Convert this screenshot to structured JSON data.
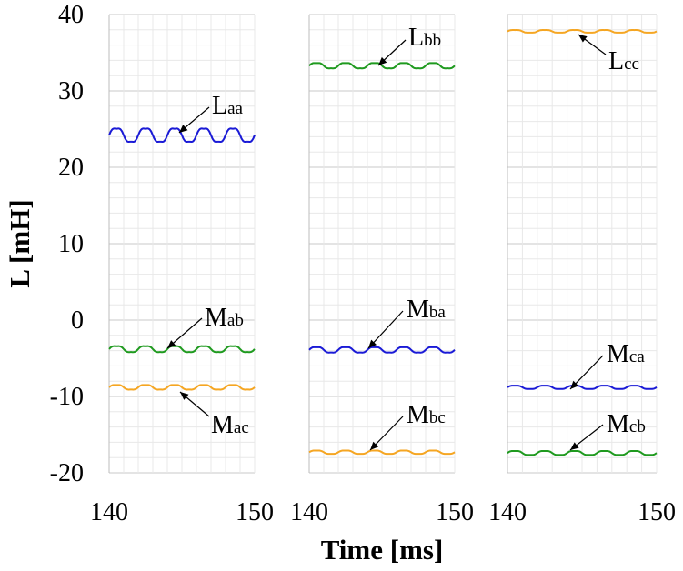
{
  "chart_data": {
    "type": "line",
    "xlabel": "Time [ms]",
    "ylabel": "L [mH]",
    "ylim": [
      -20,
      40
    ],
    "xlim": [
      140,
      150
    ],
    "y_ticks": [
      "40",
      "30",
      "20",
      "10",
      "0",
      "-10",
      "-20"
    ],
    "grid": true,
    "colors": {
      "blue": "#1a1ad6",
      "green": "#1f9a1f",
      "orange": "#f5a623"
    },
    "panels": [
      {
        "x_tick_labels": [
          "140",
          "150"
        ],
        "series": [
          {
            "name": "Laa",
            "main": "L",
            "sub": "aa",
            "color": "#1a1ad6",
            "mean": 24.2,
            "amplitude": 1.0,
            "cycles": 5
          },
          {
            "name": "Mab",
            "main": "M",
            "sub": "ab",
            "color": "#1f9a1f",
            "mean": -3.8,
            "amplitude": 0.45,
            "cycles": 5
          },
          {
            "name": "Mac",
            "main": "M",
            "sub": "ac",
            "color": "#f5a623",
            "mean": -8.8,
            "amplitude": 0.35,
            "cycles": 5
          }
        ]
      },
      {
        "x_tick_labels": [
          "140",
          "150"
        ],
        "series": [
          {
            "name": "Lbb",
            "main": "L",
            "sub": "bb",
            "color": "#1f9a1f",
            "mean": 33.3,
            "amplitude": 0.4,
            "cycles": 5
          },
          {
            "name": "Mba",
            "main": "M",
            "sub": "ba",
            "color": "#1a1ad6",
            "mean": -3.9,
            "amplitude": 0.4,
            "cycles": 5
          },
          {
            "name": "Mbc",
            "main": "M",
            "sub": "bc",
            "color": "#f5a623",
            "mean": -17.3,
            "amplitude": 0.25,
            "cycles": 5
          }
        ]
      },
      {
        "x_tick_labels": [
          "140",
          "150"
        ],
        "series": [
          {
            "name": "Lcc",
            "main": "L",
            "sub": "cc",
            "color": "#f5a623",
            "mean": 37.8,
            "amplitude": 0.2,
            "cycles": 5
          },
          {
            "name": "Mca",
            "main": "M",
            "sub": "ca",
            "color": "#1a1ad6",
            "mean": -8.8,
            "amplitude": 0.25,
            "cycles": 5
          },
          {
            "name": "Mcb",
            "main": "M",
            "sub": "cb",
            "color": "#1f9a1f",
            "mean": -17.4,
            "amplitude": 0.3,
            "cycles": 5
          }
        ]
      }
    ]
  }
}
